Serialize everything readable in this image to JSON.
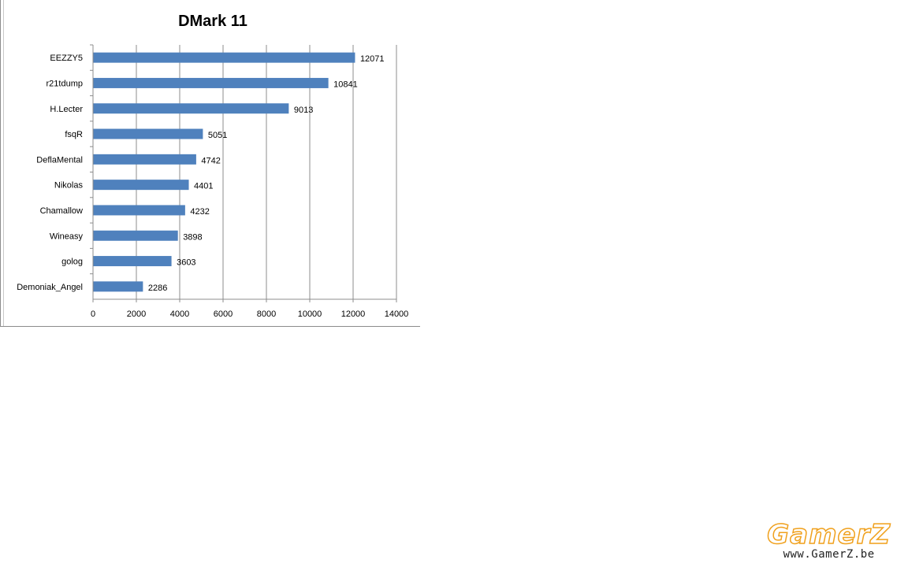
{
  "chart_data": {
    "type": "bar",
    "orientation": "horizontal",
    "title": "DMark 11",
    "categories": [
      "EEZZY5",
      "r21tdump",
      "H.Lecter",
      "fsqR",
      "DeflaMental",
      "Nikolas",
      "Chamallow",
      "Wineasy",
      "golog",
      "Demoniak_Angel"
    ],
    "values": [
      12071,
      10841,
      9013,
      5051,
      4742,
      4401,
      4232,
      3898,
      3603,
      2286
    ],
    "xlim": [
      0,
      14000
    ],
    "xticks": [
      0,
      2000,
      4000,
      6000,
      8000,
      10000,
      12000,
      14000
    ],
    "grid": true,
    "legend": "none",
    "bar_color": "#4f81bd",
    "data_labels": true
  },
  "watermark": {
    "logo": "GamerZ",
    "url": "www.GamerZ.be",
    "color": "#f0a11e"
  }
}
